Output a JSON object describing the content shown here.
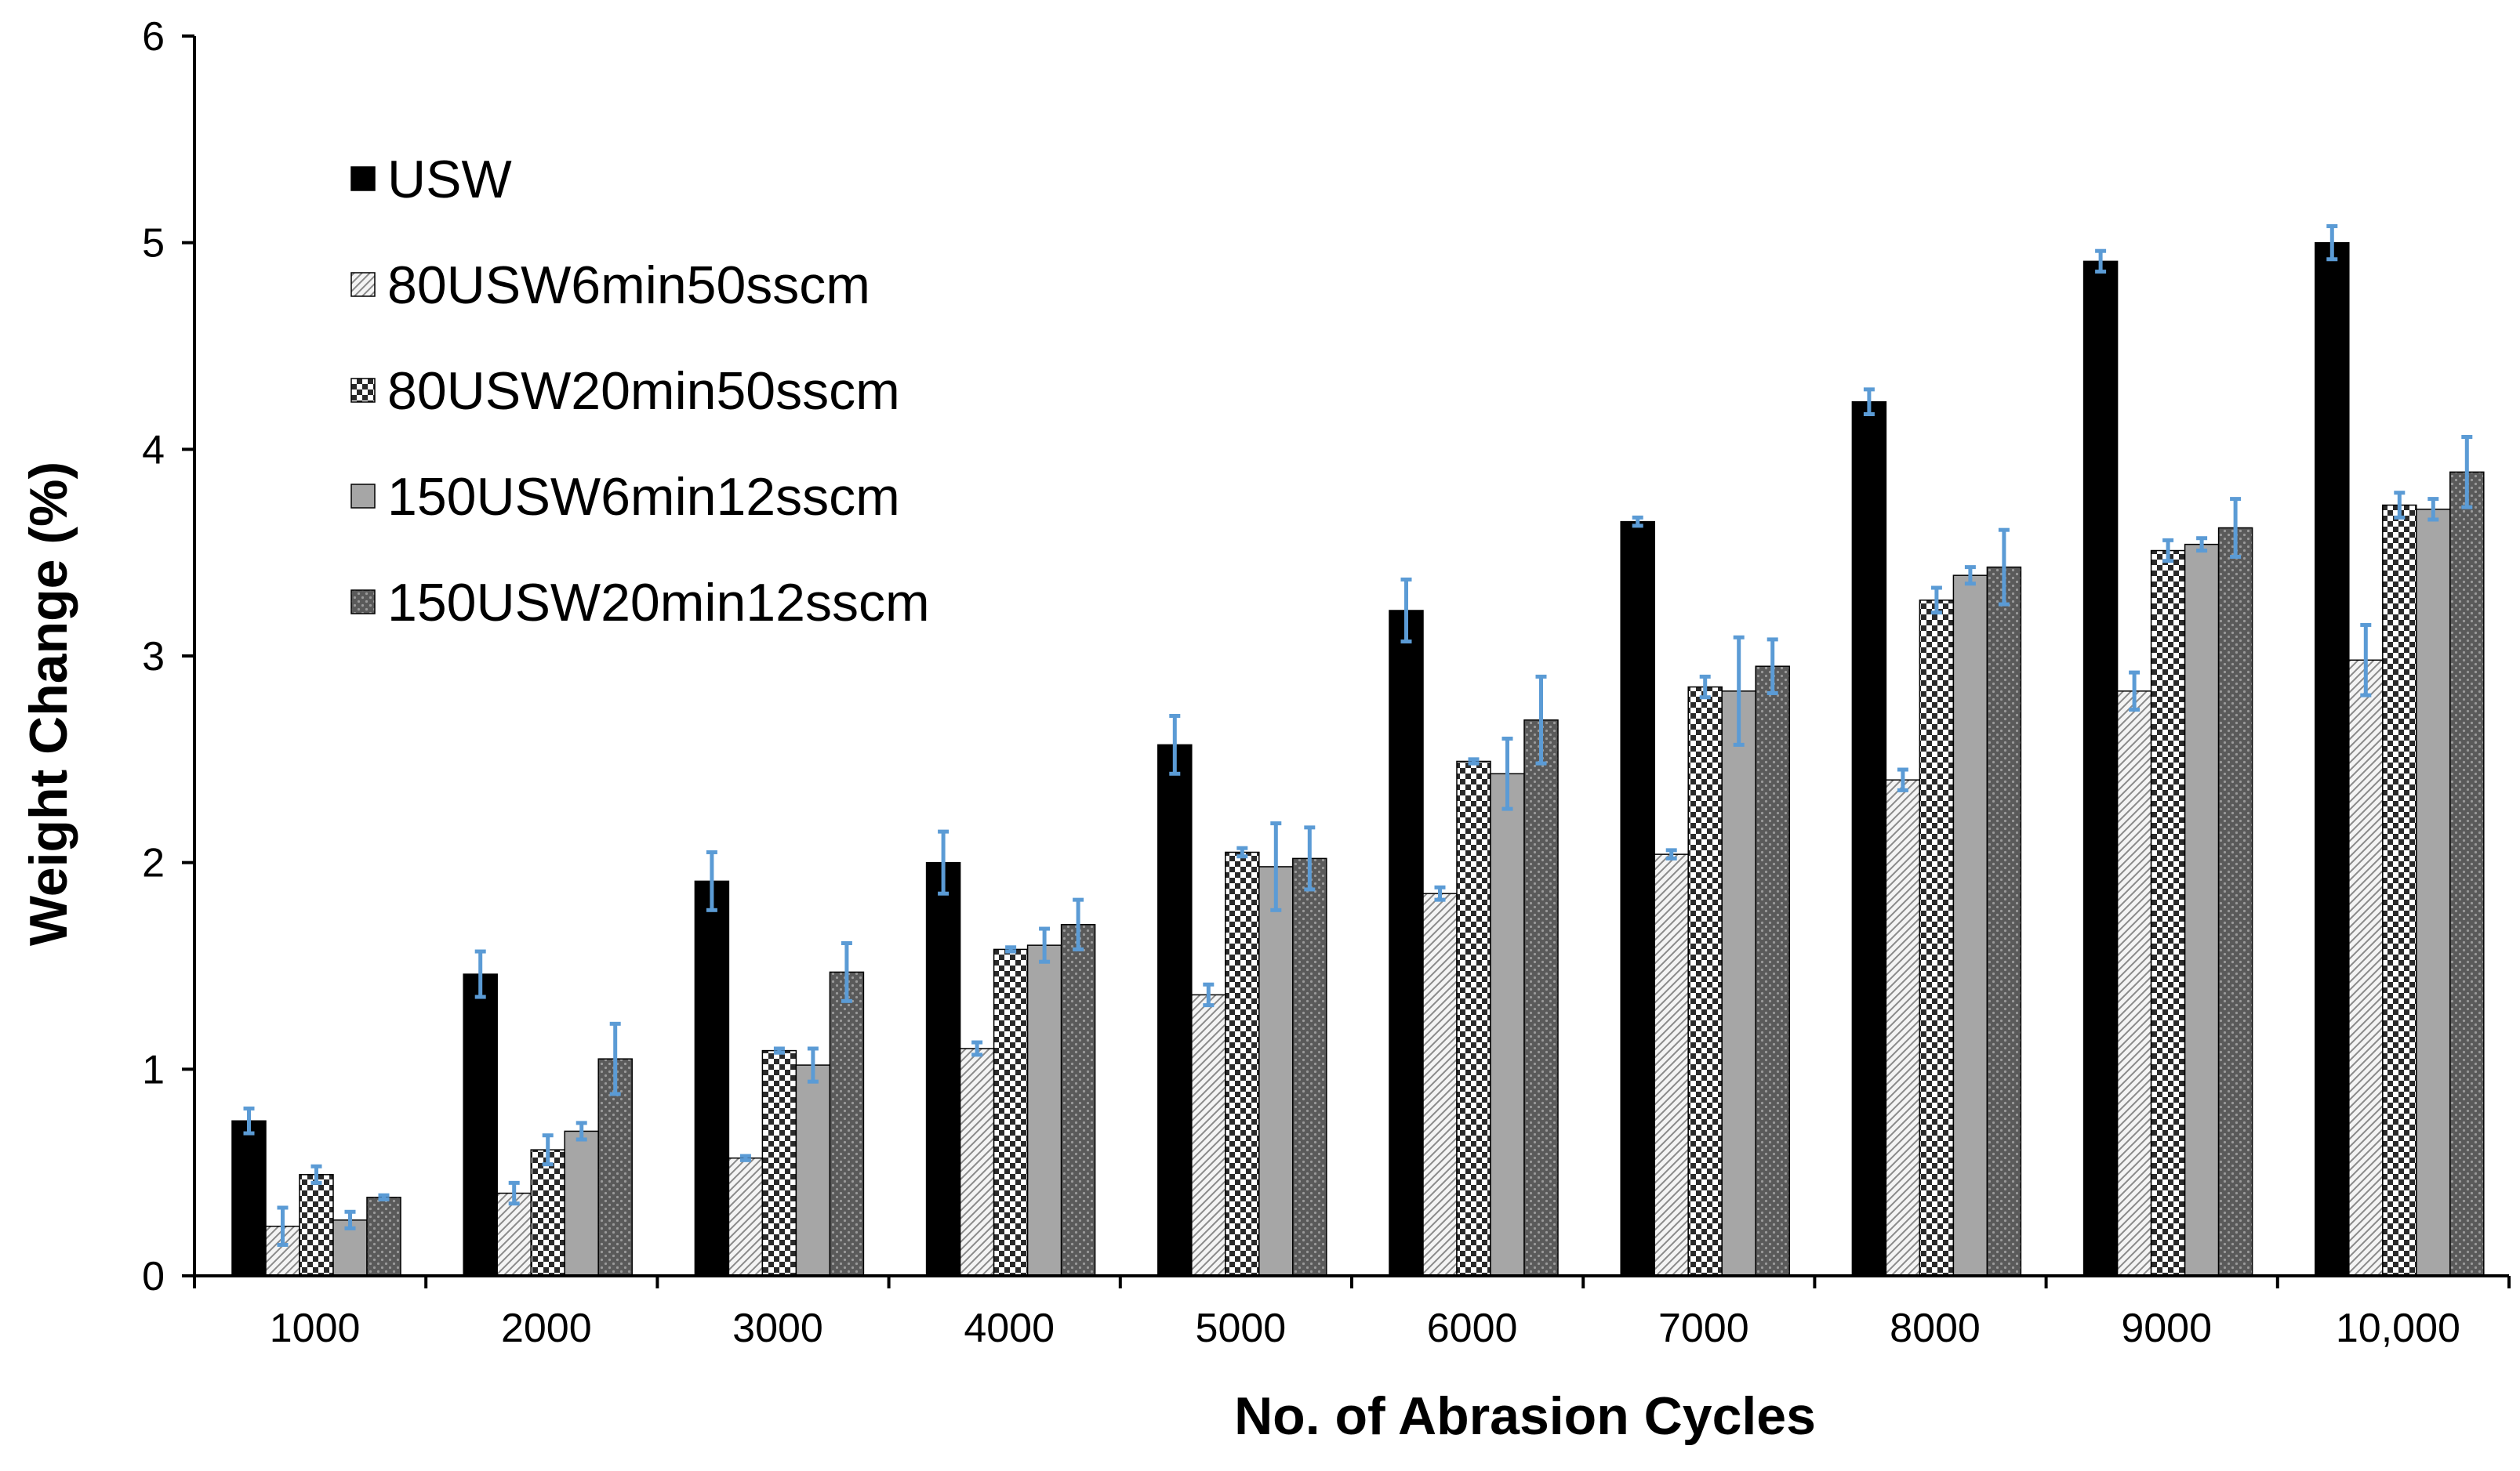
{
  "chart_data": {
    "type": "bar",
    "title": "",
    "xlabel": "No. of Abrasion Cycles",
    "ylabel": "Weight Change (%)",
    "ylim": [
      0,
      6
    ],
    "yticks": [
      "0",
      "1",
      "2",
      "3",
      "4",
      "5",
      "6"
    ],
    "categories": [
      "1000",
      "2000",
      "3000",
      "4000",
      "5000",
      "6000",
      "7000",
      "8000",
      "9000",
      "10,000"
    ],
    "legend_position": "top-left",
    "error_bar_color": "#5b9bd5",
    "series": [
      {
        "name": "USW",
        "pattern": "solid-black",
        "values": [
          0.75,
          1.46,
          1.91,
          2.0,
          2.57,
          3.22,
          3.65,
          4.23,
          4.91,
          5.0
        ],
        "errors": [
          0.06,
          0.11,
          0.14,
          0.15,
          0.14,
          0.15,
          0.02,
          0.06,
          0.05,
          0.08
        ]
      },
      {
        "name": "80USW6min50sscm",
        "pattern": "diagonal-hatch",
        "values": [
          0.24,
          0.4,
          0.57,
          1.1,
          1.36,
          1.85,
          2.04,
          2.4,
          2.83,
          2.98
        ],
        "errors": [
          0.09,
          0.05,
          0.01,
          0.03,
          0.05,
          0.03,
          0.02,
          0.05,
          0.09,
          0.17
        ]
      },
      {
        "name": "80USW20min50sscm",
        "pattern": "checker",
        "values": [
          0.49,
          0.61,
          1.09,
          1.58,
          2.05,
          2.49,
          2.85,
          3.27,
          3.51,
          3.73
        ],
        "errors": [
          0.04,
          0.07,
          0.01,
          0.01,
          0.02,
          0.01,
          0.05,
          0.06,
          0.05,
          0.06
        ]
      },
      {
        "name": "150USW6min12sscm",
        "pattern": "solid-gray",
        "values": [
          0.27,
          0.7,
          1.02,
          1.6,
          1.98,
          2.43,
          2.83,
          3.39,
          3.54,
          3.71
        ],
        "errors": [
          0.04,
          0.04,
          0.08,
          0.08,
          0.21,
          0.17,
          0.26,
          0.04,
          0.03,
          0.05
        ]
      },
      {
        "name": "150USW20min12sscm",
        "pattern": "dotted-dark",
        "values": [
          0.38,
          1.05,
          1.47,
          1.7,
          2.02,
          2.69,
          2.95,
          3.43,
          3.62,
          3.89
        ],
        "errors": [
          0.01,
          0.17,
          0.14,
          0.12,
          0.15,
          0.21,
          0.13,
          0.18,
          0.14,
          0.17
        ]
      }
    ]
  }
}
